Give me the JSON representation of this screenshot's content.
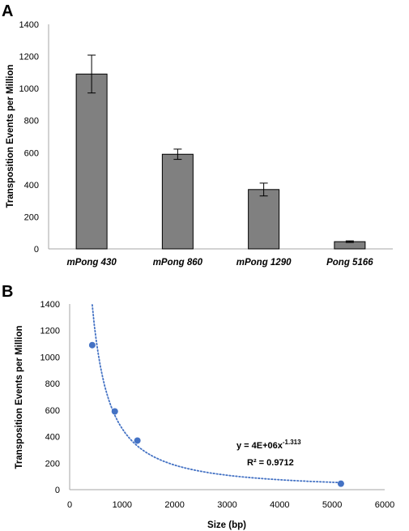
{
  "colors": {
    "bar_fill": "#808080",
    "bar_stroke": "#000000",
    "point": "#4472C4",
    "trendline": "#4472C4",
    "axis": "#a6a6a6"
  },
  "chart_data": [
    {
      "panel": "A",
      "type": "bar",
      "categories": [
        "mPong 430",
        "mPong 860",
        "mPong 1290",
        "Pong 5166"
      ],
      "values": [
        1090,
        590,
        370,
        45
      ],
      "error": [
        118,
        32,
        40,
        5
      ],
      "ylabel": "Transposition  Events per Million",
      "ylim": [
        0,
        1400
      ],
      "yticks": [
        0,
        200,
        400,
        600,
        800,
        1000,
        1200,
        1400
      ],
      "grid": false,
      "legend": "none"
    },
    {
      "panel": "B",
      "type": "scatter",
      "x": [
        430,
        860,
        1290,
        5166
      ],
      "y": [
        1090,
        590,
        370,
        45
      ],
      "xlabel": "Size (bp)",
      "ylabel": "Transposition  Events per Million",
      "xlim": [
        0,
        6000
      ],
      "ylim": [
        0,
        1400
      ],
      "xticks": [
        0,
        1000,
        2000,
        3000,
        4000,
        5000,
        6000
      ],
      "yticks": [
        0,
        200,
        400,
        600,
        800,
        1000,
        1200,
        1400
      ],
      "trendline": {
        "type": "power",
        "a": 4000000,
        "b": -1.313
      },
      "equation_main": "y = 4E+06x",
      "equation_exp": "-1.313",
      "r2_label": "R² = 0.9712",
      "grid": false,
      "legend": "none"
    }
  ]
}
